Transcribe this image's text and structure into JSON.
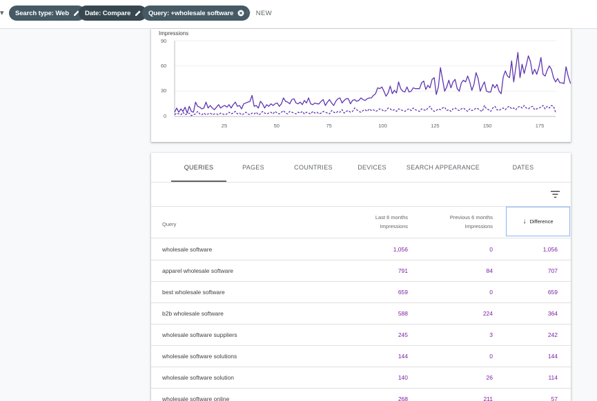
{
  "filters": [
    {
      "label": "Search type: Web",
      "icon": "pencil-icon"
    },
    {
      "label": "Date: Compare",
      "icon": "pencil-icon"
    },
    {
      "label": "Query: +wholesale software",
      "icon": "close-circle-icon"
    }
  ],
  "new_button": {
    "icon": "plus-icon",
    "label": "NEW"
  },
  "chart_data": {
    "type": "line",
    "ylabel": "Impressions",
    "ylim": [
      0,
      90
    ],
    "yticks": [
      "0",
      "30",
      "60",
      "90"
    ],
    "xticks": [
      "25",
      "50",
      "75",
      "100",
      "125",
      "150",
      "175"
    ],
    "xlim": [
      1,
      183
    ],
    "grid": true,
    "colors": {
      "last": "#5e35b1",
      "previous": "#5e35b1"
    },
    "series": [
      {
        "style": "solid",
        "values": [
          5,
          10,
          5,
          9,
          6,
          11,
          4,
          12,
          6,
          5,
          17,
          12,
          11,
          9,
          10,
          17,
          10,
          13,
          10,
          8,
          11,
          14,
          10,
          12,
          13,
          11,
          14,
          10,
          14,
          17,
          12,
          13,
          9,
          15,
          16,
          17,
          18,
          25,
          12,
          13,
          10,
          18,
          15,
          10,
          14,
          12,
          15,
          13,
          15,
          16,
          12,
          15,
          22,
          18,
          17,
          15,
          20,
          21,
          16,
          15,
          17,
          14,
          19,
          16,
          22,
          15,
          14,
          16,
          15,
          15,
          18,
          20,
          13,
          17,
          20,
          16,
          13,
          18,
          21,
          22,
          16,
          19,
          21,
          21,
          15,
          19,
          20,
          18,
          19,
          22,
          20,
          19,
          21,
          22,
          22,
          25,
          27,
          34,
          33,
          35,
          30,
          24,
          28,
          36,
          27,
          31,
          28,
          41,
          33,
          30,
          29,
          35,
          29,
          30,
          34,
          33,
          33,
          33,
          40,
          42,
          32,
          37,
          34,
          44,
          46,
          26,
          35,
          58,
          44,
          30,
          35,
          43,
          34,
          41,
          44,
          33,
          30,
          40,
          43,
          41,
          48,
          41,
          31,
          38,
          52,
          45,
          30,
          36,
          41,
          30,
          29,
          29,
          38,
          34,
          38,
          30,
          27,
          47,
          54,
          48,
          46,
          66,
          41,
          58,
          76,
          46,
          62,
          51,
          61,
          72,
          65,
          50,
          56,
          50,
          58,
          70,
          50,
          48,
          55,
          60,
          56,
          46,
          41,
          45,
          40,
          40,
          39,
          59,
          48,
          40,
          37,
          37,
          36
        ]
      },
      {
        "style": "dashed",
        "values": [
          2,
          4,
          3,
          2,
          5,
          2,
          3,
          4,
          1,
          2,
          3,
          6,
          3,
          2,
          4,
          2,
          3,
          4,
          2,
          3,
          3,
          2,
          4,
          3,
          2,
          3,
          5,
          3,
          4,
          6,
          3,
          4,
          2,
          3,
          5,
          3,
          2,
          4,
          3,
          5,
          2,
          3,
          6,
          4,
          3,
          4,
          5,
          3,
          6,
          4,
          3,
          5,
          7,
          4,
          3,
          6,
          5,
          4,
          3,
          5,
          4,
          6,
          3,
          5,
          4,
          3,
          6,
          4,
          5,
          3,
          4,
          6,
          5,
          4,
          3,
          7,
          5,
          4,
          6,
          5,
          8,
          4,
          6,
          7,
          5,
          6,
          10,
          8,
          6,
          5,
          7,
          8,
          6,
          9,
          7,
          8,
          6,
          7,
          9,
          8,
          6,
          7,
          10,
          9,
          7,
          8,
          6,
          9,
          8,
          7,
          6,
          8,
          9,
          7,
          10,
          8,
          7,
          6,
          9,
          8,
          7,
          10,
          12,
          8,
          6,
          7,
          9,
          8,
          10,
          11,
          7,
          8,
          6,
          9,
          10,
          8,
          7,
          9,
          10,
          8,
          6,
          9,
          7,
          8,
          10,
          9,
          7,
          6,
          13,
          9,
          8,
          6,
          10,
          12,
          8,
          7,
          9,
          10,
          8,
          11,
          12,
          9,
          10,
          8,
          11,
          12,
          10,
          13,
          10,
          9,
          11,
          12,
          8,
          9,
          10,
          11,
          13,
          9,
          12,
          10,
          13,
          12,
          5
        ]
      }
    ]
  },
  "tabs": [
    "QUERIES",
    "PAGES",
    "COUNTRIES",
    "DEVICES",
    "SEARCH APPEARANCE",
    "DATES"
  ],
  "table": {
    "filter_icon": "filter-list-icon",
    "headers": {
      "query": "Query",
      "last_line1": "Last 6 months",
      "last_line2": "Impressions",
      "prev_line1": "Previous 6 months",
      "prev_line2": "Impressions",
      "diff": "Difference",
      "sort_icon": "arrow-down-icon"
    },
    "rows": [
      {
        "query": "wholesale software",
        "last": "1,056",
        "prev": "0",
        "diff": "1,056"
      },
      {
        "query": "apparel wholesale software",
        "last": "791",
        "prev": "84",
        "diff": "707"
      },
      {
        "query": "best wholesale software",
        "last": "659",
        "prev": "0",
        "diff": "659"
      },
      {
        "query": "b2b wholesale software",
        "last": "588",
        "prev": "224",
        "diff": "364"
      },
      {
        "query": "wholesale software suppliers",
        "last": "245",
        "prev": "3",
        "diff": "242"
      },
      {
        "query": "wholesale software solutions",
        "last": "144",
        "prev": "0",
        "diff": "144"
      },
      {
        "query": "wholesale software solution",
        "last": "140",
        "prev": "26",
        "diff": "114"
      },
      {
        "query": "wholesale software online",
        "last": "268",
        "prev": "211",
        "diff": "57"
      }
    ]
  }
}
